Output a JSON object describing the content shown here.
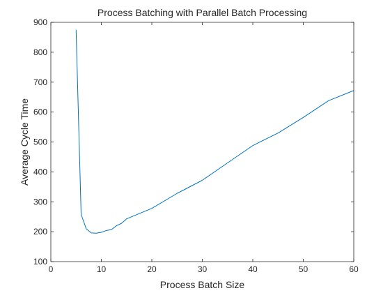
{
  "chart_data": {
    "type": "line",
    "title": "Process Batching with Parallel Batch Processing",
    "xlabel": "Process Batch Size",
    "ylabel": "Average Cycle Time",
    "xlim": [
      0,
      60
    ],
    "ylim": [
      100,
      900
    ],
    "xticks": [
      "0",
      "10",
      "20",
      "30",
      "40",
      "50",
      "60"
    ],
    "yticks": [
      "100",
      "200",
      "300",
      "400",
      "500",
      "600",
      "700",
      "800",
      "900"
    ],
    "grid": false,
    "legend": null,
    "colors": {
      "line": "#0072BD",
      "axis": "#262626",
      "background": "#ffffff"
    },
    "series": [
      {
        "x": [
          5,
          6,
          7,
          8,
          9,
          10,
          11,
          12,
          13,
          14,
          15,
          16,
          17,
          18,
          19,
          20,
          25,
          30,
          35,
          40,
          45,
          50,
          55,
          60
        ],
        "y": [
          875,
          258,
          210,
          196,
          195,
          198,
          204,
          207,
          220,
          228,
          243,
          250,
          257,
          264,
          271,
          278,
          328,
          372,
          430,
          488,
          530,
          582,
          638,
          672
        ]
      }
    ]
  }
}
